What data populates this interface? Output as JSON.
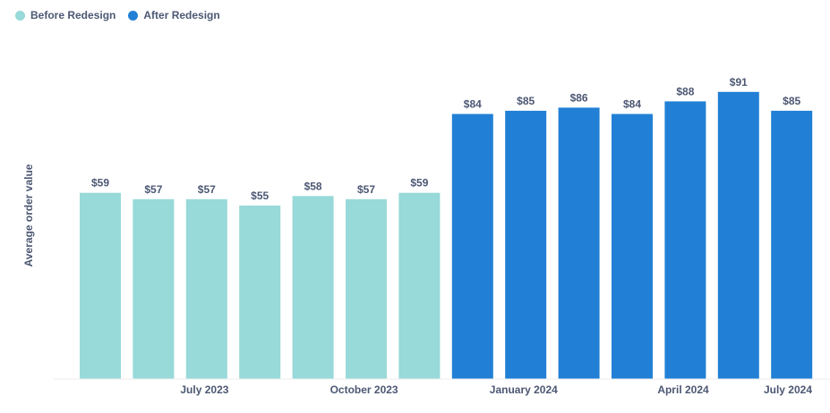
{
  "legend": {
    "items": [
      {
        "label": "Before Redesign",
        "color": "#98D9D9"
      },
      {
        "label": "After Redesign",
        "color": "#2180D5"
      }
    ],
    "placement": "top-left"
  },
  "chart_data": {
    "type": "bar",
    "ylabel": "Average order value",
    "xlabel": "",
    "ylim": [
      0,
      100
    ],
    "grid": false,
    "categories": [
      "2023-06",
      "2023-07",
      "2023-08",
      "2023-09",
      "2023-10",
      "2023-11",
      "2023-12",
      "2024-01",
      "2024-02",
      "2024-03",
      "2024-04",
      "2024-05",
      "2024-06",
      "2024-07"
    ],
    "x_tick_labels": [
      {
        "category": "2023-07",
        "label": "July 2023"
      },
      {
        "category": "2023-10",
        "label": "October 2023"
      },
      {
        "category": "2024-01",
        "label": "January 2024"
      },
      {
        "category": "2024-04",
        "label": "April 2024"
      },
      {
        "category": "2024-07",
        "label": "July 2024"
      }
    ],
    "series": [
      {
        "name": "Before Redesign",
        "color": "#98D9D9",
        "values": [
          59,
          57,
          57,
          55,
          58,
          57,
          59,
          null,
          null,
          null,
          null,
          null,
          null,
          null
        ],
        "data_labels": [
          "$59",
          "$57",
          "$57",
          "$55",
          "$58",
          "$57",
          "$59",
          null,
          null,
          null,
          null,
          null,
          null,
          null
        ]
      },
      {
        "name": "After Redesign",
        "color": "#2180D5",
        "values": [
          null,
          null,
          null,
          null,
          null,
          null,
          null,
          84,
          85,
          86,
          84,
          88,
          91,
          85
        ],
        "data_labels": [
          null,
          null,
          null,
          null,
          null,
          null,
          null,
          "$84",
          "$85",
          "$86",
          "$84",
          "$88",
          "$91",
          "$85"
        ]
      }
    ]
  }
}
